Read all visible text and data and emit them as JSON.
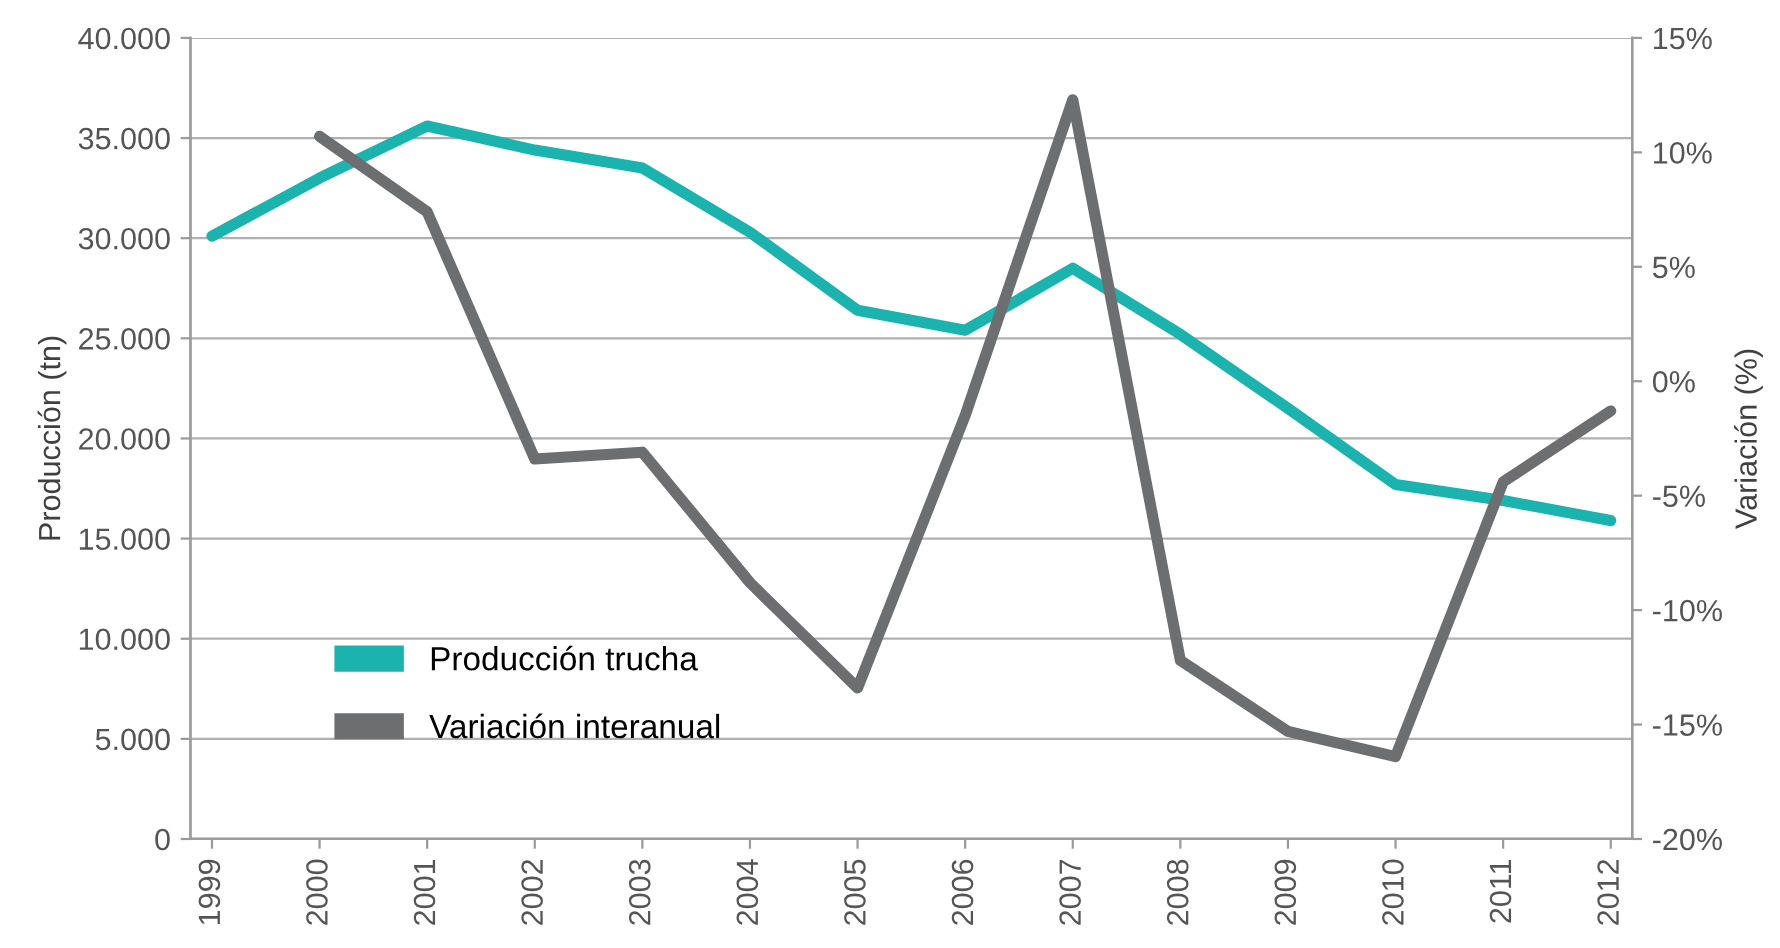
{
  "chart_data": {
    "type": "line",
    "categories": [
      "1999",
      "2000",
      "2001",
      "2002",
      "2003",
      "2004",
      "2005",
      "2006",
      "2007",
      "2008",
      "2009",
      "2010",
      "2011",
      "2012"
    ],
    "series": [
      {
        "name": "Producción trucha",
        "color": "#1ab3ae",
        "values": [
          30100,
          33000,
          35600,
          34400,
          33500,
          30300,
          26400,
          25400,
          28500,
          25200,
          21500,
          17700,
          16900,
          15900
        ]
      },
      {
        "name": "Variación interanual",
        "color": "#6d6e70",
        "axis": "y2",
        "values": [
          null,
          10.7,
          7.4,
          -3.4,
          -3.1,
          -8.8,
          -13.4,
          -1.5,
          12.3,
          -12.2,
          -15.3,
          -16.4,
          -4.4,
          -1.3
        ]
      }
    ],
    "ylabel": "Producción (tn)",
    "y2label": "Variación (%)",
    "ylim": [
      0,
      40000
    ],
    "yticks": [
      {
        "value": 0,
        "label": "0"
      },
      {
        "value": 5000,
        "label": "5.000"
      },
      {
        "value": 10000,
        "label": "10.000"
      },
      {
        "value": 15000,
        "label": "15.000"
      },
      {
        "value": 20000,
        "label": "20.000"
      },
      {
        "value": 25000,
        "label": "25.000"
      },
      {
        "value": 30000,
        "label": "30.000"
      },
      {
        "value": 35000,
        "label": "35.000"
      },
      {
        "value": 40000,
        "label": "40.000"
      }
    ],
    "y2lim": [
      -20,
      15
    ],
    "y2ticks": [
      {
        "value": -20,
        "label": "-20%"
      },
      {
        "value": -15,
        "label": "-15%"
      },
      {
        "value": -10,
        "label": "-10%"
      },
      {
        "value": -5,
        "label": "-5%"
      },
      {
        "value": 0,
        "label": "0%"
      },
      {
        "value": 5,
        "label": "5%"
      },
      {
        "value": 10,
        "label": "10%"
      },
      {
        "value": 15,
        "label": "15%"
      }
    ],
    "grid": "y",
    "legend": "bottom left",
    "marker": "none",
    "line_style": "solid"
  }
}
